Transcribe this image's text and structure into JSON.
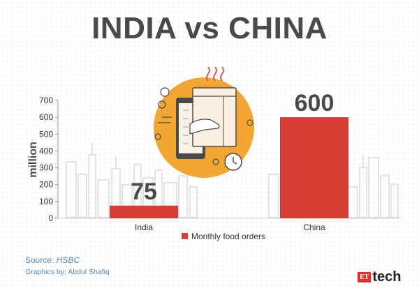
{
  "title": "INDIA vs CHINA",
  "source_label": "Source:",
  "source_name": "HSBC",
  "credit": "Graphics by: Abdul Shafiq",
  "logo": {
    "et": "ET",
    "tech": "tech"
  },
  "colors": {
    "bar": "#d93b35",
    "title": "#4a4a4a",
    "axis": "#999999",
    "illustration_bg": "#f2a735"
  },
  "chart_data": {
    "type": "bar",
    "categories": [
      "India",
      "China"
    ],
    "series": [
      {
        "name": "Monthly food orders",
        "values": [
          75,
          600
        ]
      }
    ],
    "data_labels": [
      "75",
      "600"
    ],
    "ylabel": "million",
    "ylim": [
      0,
      700
    ],
    "yticks": [
      0,
      100,
      200,
      300,
      400,
      500,
      600,
      700
    ],
    "grid": false,
    "legend_position": "bottom"
  }
}
